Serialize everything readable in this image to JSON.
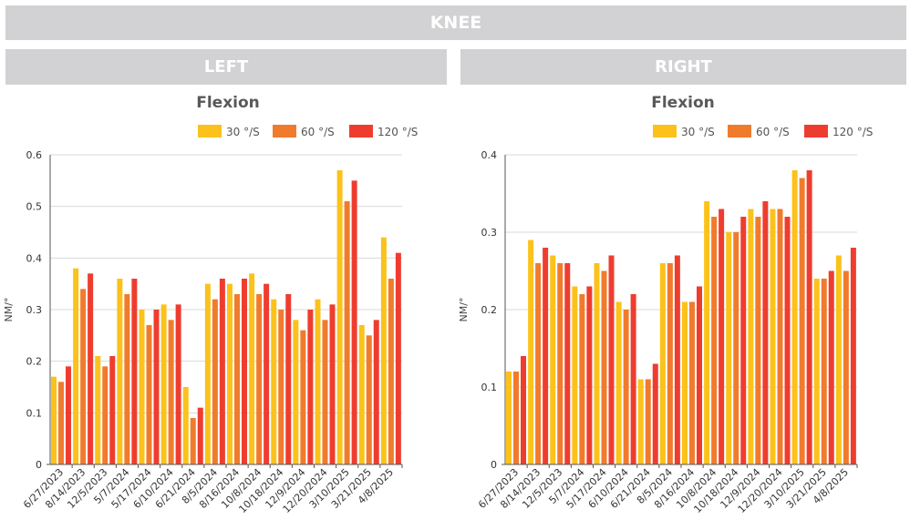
{
  "header": {
    "title": "KNEE"
  },
  "panels": {
    "left_title": "LEFT",
    "right_title": "RIGHT"
  },
  "chart_data": [
    {
      "type": "bar",
      "panel": "LEFT",
      "title": "Flexion",
      "xlabel": "",
      "ylabel": "NM/°",
      "ylim": [
        0,
        0.6
      ],
      "yticks": [
        "0",
        "0.1",
        "0.2",
        "0.3",
        "0.4",
        "0.5",
        "0.6"
      ],
      "grid": true,
      "legend_position": "top-right",
      "categories": [
        "6/27/2023",
        "8/14/2023",
        "12/5/2023",
        "5/7/2024",
        "5/17/2024",
        "6/10/2024",
        "6/21/2024",
        "8/5/2024",
        "8/16/2024",
        "10/8/2024",
        "10/18/2024",
        "12/9/2024",
        "12/20/2024",
        "3/10/2025",
        "3/21/2025",
        "4/8/2025"
      ],
      "series": [
        {
          "name": "30 °/S",
          "color": "#fcc21b",
          "values": [
            0.17,
            0.38,
            0.21,
            0.36,
            0.3,
            0.31,
            0.15,
            0.35,
            0.35,
            0.37,
            0.32,
            0.28,
            0.32,
            0.57,
            0.27,
            0.44
          ]
        },
        {
          "name": "60 °/S",
          "color": "#f07b2d",
          "values": [
            0.16,
            0.34,
            0.19,
            0.33,
            0.27,
            0.28,
            0.09,
            0.32,
            0.33,
            0.33,
            0.3,
            0.26,
            0.28,
            0.51,
            0.25,
            0.36
          ]
        },
        {
          "name": "120 °/S",
          "color": "#ee3d2f",
          "values": [
            0.19,
            0.37,
            0.21,
            0.36,
            0.3,
            0.31,
            0.11,
            0.36,
            0.36,
            0.35,
            0.33,
            0.3,
            0.31,
            0.55,
            0.28,
            0.41
          ]
        }
      ]
    },
    {
      "type": "bar",
      "panel": "RIGHT",
      "title": "Flexion",
      "xlabel": "",
      "ylabel": "NM/°",
      "ylim": [
        0,
        0.4
      ],
      "yticks": [
        "0",
        "0.1",
        "0.2",
        "0.3",
        "0.4"
      ],
      "grid": true,
      "legend_position": "top-right",
      "categories": [
        "6/27/2023",
        "8/14/2023",
        "12/5/2023",
        "5/7/2024",
        "5/17/2024",
        "6/10/2024",
        "6/21/2024",
        "8/5/2024",
        "8/16/2024",
        "10/8/2024",
        "10/18/2024",
        "12/9/2024",
        "12/20/2024",
        "3/10/2025",
        "3/21/2025",
        "4/8/2025"
      ],
      "series": [
        {
          "name": "30 °/S",
          "color": "#fcc21b",
          "values": [
            0.12,
            0.29,
            0.27,
            0.23,
            0.26,
            0.21,
            0.11,
            0.26,
            0.21,
            0.34,
            0.3,
            0.33,
            0.33,
            0.38,
            0.24,
            0.27
          ]
        },
        {
          "name": "60 °/S",
          "color": "#f07b2d",
          "values": [
            0.12,
            0.26,
            0.26,
            0.22,
            0.25,
            0.2,
            0.11,
            0.26,
            0.21,
            0.32,
            0.3,
            0.32,
            0.33,
            0.37,
            0.24,
            0.25
          ]
        },
        {
          "name": "120 °/S",
          "color": "#ee3d2f",
          "values": [
            0.14,
            0.28,
            0.26,
            0.23,
            0.27,
            0.22,
            0.13,
            0.27,
            0.23,
            0.33,
            0.32,
            0.34,
            0.32,
            0.38,
            0.25,
            0.28
          ]
        }
      ]
    }
  ]
}
